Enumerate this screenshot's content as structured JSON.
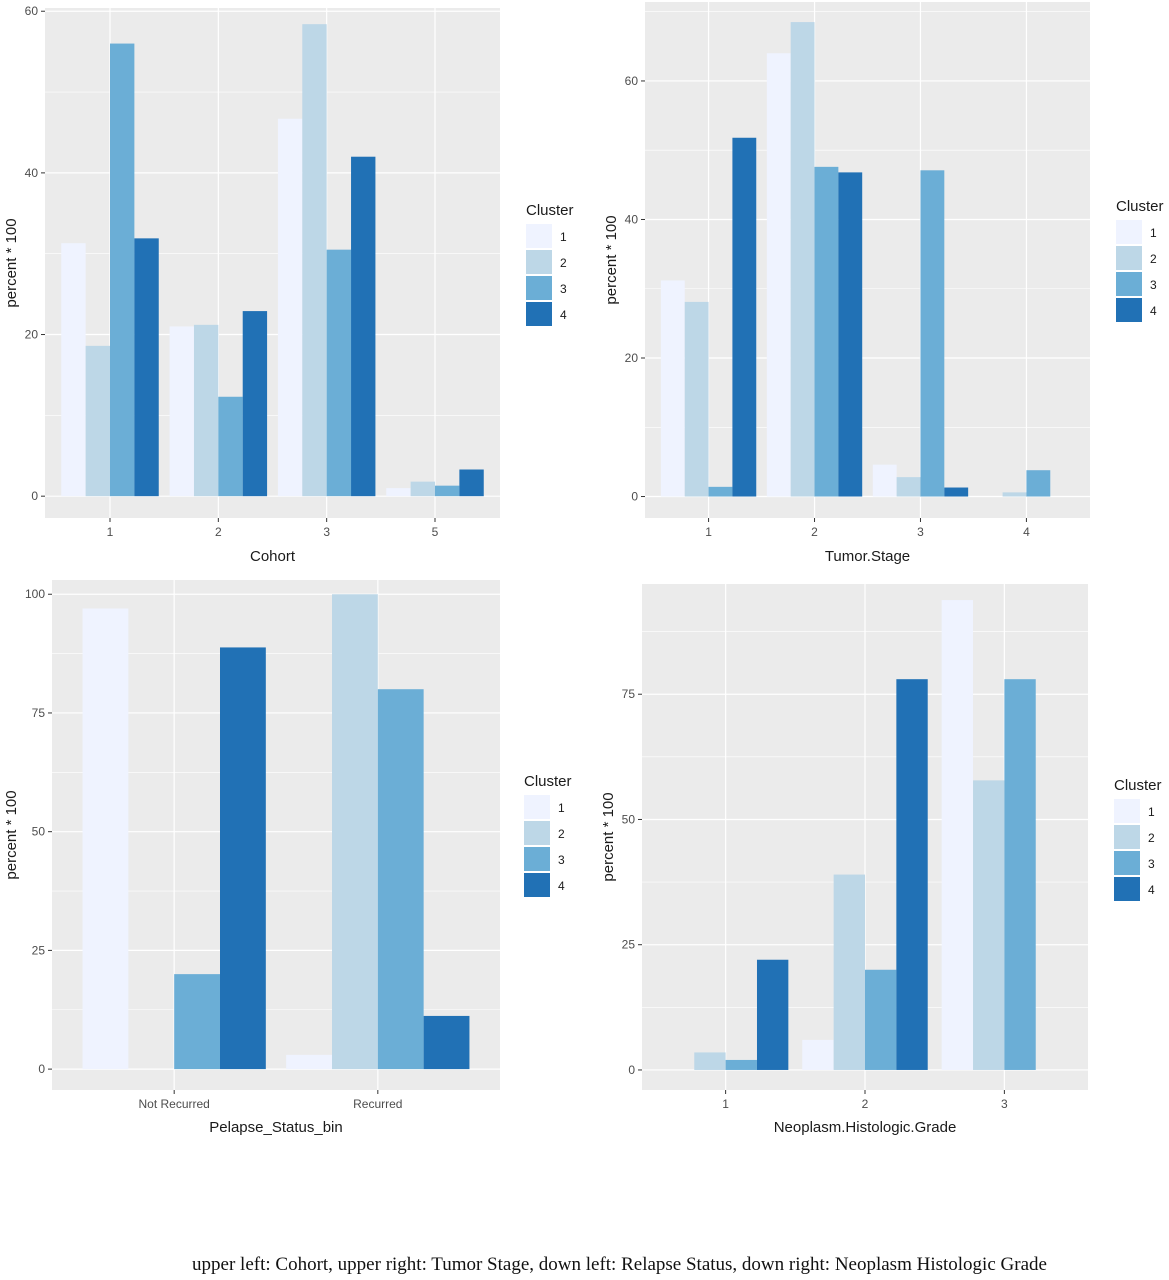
{
  "colors": {
    "panel": "#EBEBEB",
    "grid": "#FFFFFF",
    "axis_text": "#4D4D4D",
    "title_text": "#1A1A1A",
    "cluster": [
      "#EFF3FF",
      "#BDD7E7",
      "#6BAED6",
      "#2171B5"
    ]
  },
  "legend_title": "Cluster",
  "legend_labels": [
    "1",
    "2",
    "3",
    "4"
  ],
  "caption": "upper left: Cohort, upper right: Tumor Stage, down left: Relapse Status, down right: Neoplasm Histologic Grade",
  "chart_data": [
    {
      "type": "bar",
      "xlabel": "Cohort",
      "ylabel": "percent * 100",
      "categories": [
        "1",
        "2",
        "3",
        "5"
      ],
      "yticks": [
        0,
        20,
        40,
        60
      ],
      "ylim": [
        -2.7,
        60.4
      ],
      "grid": true,
      "legend": "right",
      "series": [
        {
          "name": "1",
          "values": [
            31.3,
            21.0,
            46.7,
            1.0
          ]
        },
        {
          "name": "2",
          "values": [
            18.6,
            21.2,
            58.4,
            1.8
          ]
        },
        {
          "name": "3",
          "values": [
            56.0,
            12.3,
            30.5,
            1.3
          ]
        },
        {
          "name": "4",
          "values": [
            31.9,
            22.9,
            42.0,
            3.3
          ]
        }
      ]
    },
    {
      "type": "bar",
      "xlabel": "Tumor.Stage",
      "ylabel": "percent * 100",
      "categories": [
        "1",
        "2",
        "3",
        "4"
      ],
      "yticks": [
        0,
        20,
        40,
        60
      ],
      "ylim": [
        -3.1,
        71.4
      ],
      "grid": true,
      "legend": "right",
      "series": [
        {
          "name": "1",
          "values": [
            31.2,
            64.0,
            4.6,
            0
          ]
        },
        {
          "name": "2",
          "values": [
            28.1,
            68.5,
            2.8,
            0.6
          ]
        },
        {
          "name": "3",
          "values": [
            1.4,
            47.6,
            47.1,
            3.8
          ]
        },
        {
          "name": "4",
          "values": [
            51.8,
            46.8,
            1.3,
            0
          ]
        }
      ]
    },
    {
      "type": "bar",
      "xlabel": "Pelapse_Status_bin",
      "ylabel": "percent * 100",
      "categories": [
        "Not Recurred",
        "Recurred"
      ],
      "yticks": [
        0,
        25,
        50,
        75,
        100
      ],
      "ylim": [
        -4.4,
        103.0
      ],
      "grid": true,
      "legend": "right",
      "series": [
        {
          "name": "1",
          "values": [
            97.0,
            3.0
          ]
        },
        {
          "name": "2",
          "values": [
            0,
            100.0
          ]
        },
        {
          "name": "3",
          "values": [
            20.0,
            80.0
          ]
        },
        {
          "name": "4",
          "values": [
            88.8,
            11.2
          ]
        }
      ]
    },
    {
      "type": "bar",
      "xlabel": "Neoplasm.Histologic.Grade",
      "ylabel": "percent * 100",
      "categories": [
        "1",
        "2",
        "3"
      ],
      "yticks": [
        0,
        25,
        50,
        75
      ],
      "ylim": [
        -4.0,
        97.0
      ],
      "grid": true,
      "legend": "right",
      "series": [
        {
          "name": "1",
          "values": [
            0,
            6.0,
            93.8
          ]
        },
        {
          "name": "2",
          "values": [
            3.5,
            39.0,
            57.8
          ]
        },
        {
          "name": "3",
          "values": [
            2.0,
            20.0,
            78.0
          ]
        },
        {
          "name": "4",
          "values": [
            22.0,
            78.0,
            0
          ]
        }
      ]
    }
  ]
}
